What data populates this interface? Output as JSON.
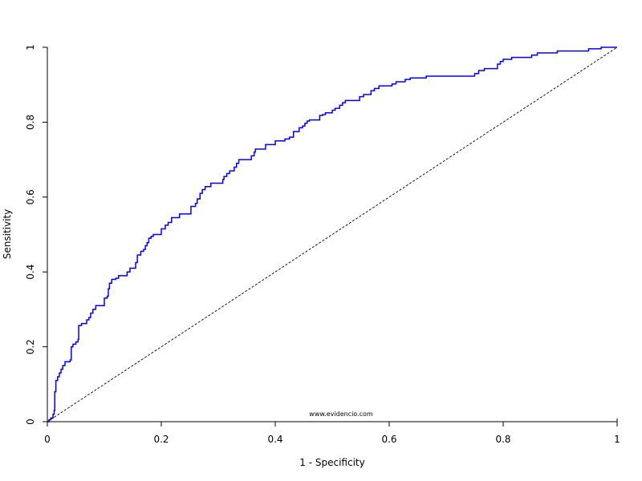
{
  "chart_data": {
    "type": "line",
    "title": "",
    "xlabel": "1 - Specificity",
    "ylabel": "Sensitivity",
    "xlim": [
      0,
      1
    ],
    "ylim": [
      0,
      1
    ],
    "xticks": [
      "0",
      "0.2",
      "0.4",
      "0.6",
      "0.8",
      "1"
    ],
    "yticks": [
      "0",
      "0.2",
      "0.4",
      "0.6",
      "0.8",
      "1"
    ],
    "grid": false,
    "legend": "none",
    "watermark": "www.evidencio.com",
    "series": [
      {
        "color": "#0000ff",
        "style": "step",
        "points": [
          [
            0.0,
            0.0
          ],
          [
            0.003,
            0.005
          ],
          [
            0.006,
            0.01
          ],
          [
            0.01,
            0.02
          ],
          [
            0.012,
            0.03
          ],
          [
            0.013,
            0.08
          ],
          [
            0.015,
            0.11
          ],
          [
            0.018,
            0.12
          ],
          [
            0.021,
            0.13
          ],
          [
            0.024,
            0.14
          ],
          [
            0.027,
            0.15
          ],
          [
            0.031,
            0.16
          ],
          [
            0.04,
            0.165
          ],
          [
            0.042,
            0.2
          ],
          [
            0.045,
            0.207
          ],
          [
            0.05,
            0.213
          ],
          [
            0.054,
            0.22
          ],
          [
            0.055,
            0.257
          ],
          [
            0.06,
            0.262
          ],
          [
            0.066,
            0.262
          ],
          [
            0.069,
            0.272
          ],
          [
            0.073,
            0.278
          ],
          [
            0.076,
            0.29
          ],
          [
            0.08,
            0.3
          ],
          [
            0.085,
            0.31
          ],
          [
            0.095,
            0.31
          ],
          [
            0.1,
            0.33
          ],
          [
            0.105,
            0.335
          ],
          [
            0.107,
            0.355
          ],
          [
            0.109,
            0.37
          ],
          [
            0.113,
            0.38
          ],
          [
            0.12,
            0.383
          ],
          [
            0.125,
            0.39
          ],
          [
            0.135,
            0.39
          ],
          [
            0.14,
            0.4
          ],
          [
            0.145,
            0.41
          ],
          [
            0.152,
            0.41
          ],
          [
            0.155,
            0.425
          ],
          [
            0.158,
            0.445
          ],
          [
            0.164,
            0.455
          ],
          [
            0.169,
            0.46
          ],
          [
            0.172,
            0.47
          ],
          [
            0.175,
            0.478
          ],
          [
            0.178,
            0.49
          ],
          [
            0.182,
            0.495
          ],
          [
            0.186,
            0.5
          ],
          [
            0.197,
            0.5
          ],
          [
            0.2,
            0.515
          ],
          [
            0.207,
            0.525
          ],
          [
            0.212,
            0.532
          ],
          [
            0.218,
            0.545
          ],
          [
            0.232,
            0.555
          ],
          [
            0.252,
            0.575
          ],
          [
            0.26,
            0.583
          ],
          [
            0.263,
            0.595
          ],
          [
            0.268,
            0.61
          ],
          [
            0.272,
            0.62
          ],
          [
            0.277,
            0.628
          ],
          [
            0.282,
            0.628
          ],
          [
            0.287,
            0.637
          ],
          [
            0.308,
            0.647
          ],
          [
            0.31,
            0.655
          ],
          [
            0.315,
            0.663
          ],
          [
            0.32,
            0.67
          ],
          [
            0.328,
            0.68
          ],
          [
            0.332,
            0.69
          ],
          [
            0.336,
            0.7
          ],
          [
            0.358,
            0.71
          ],
          [
            0.363,
            0.72
          ],
          [
            0.365,
            0.728
          ],
          [
            0.383,
            0.74
          ],
          [
            0.4,
            0.75
          ],
          [
            0.417,
            0.755
          ],
          [
            0.425,
            0.76
          ],
          [
            0.432,
            0.775
          ],
          [
            0.442,
            0.785
          ],
          [
            0.448,
            0.79
          ],
          [
            0.452,
            0.797
          ],
          [
            0.456,
            0.803
          ],
          [
            0.46,
            0.806
          ],
          [
            0.478,
            0.818
          ],
          [
            0.483,
            0.82
          ],
          [
            0.488,
            0.825
          ],
          [
            0.5,
            0.832
          ],
          [
            0.505,
            0.837
          ],
          [
            0.513,
            0.845
          ],
          [
            0.518,
            0.852
          ],
          [
            0.523,
            0.858
          ],
          [
            0.548,
            0.868
          ],
          [
            0.555,
            0.874
          ],
          [
            0.568,
            0.884
          ],
          [
            0.574,
            0.89
          ],
          [
            0.582,
            0.897
          ],
          [
            0.605,
            0.902
          ],
          [
            0.612,
            0.908
          ],
          [
            0.628,
            0.914
          ],
          [
            0.637,
            0.918
          ],
          [
            0.665,
            0.923
          ],
          [
            0.75,
            0.93
          ],
          [
            0.757,
            0.938
          ],
          [
            0.767,
            0.943
          ],
          [
            0.79,
            0.955
          ],
          [
            0.795,
            0.962
          ],
          [
            0.8,
            0.968
          ],
          [
            0.815,
            0.973
          ],
          [
            0.85,
            0.979
          ],
          [
            0.86,
            0.985
          ],
          [
            0.895,
            0.99
          ],
          [
            0.95,
            0.996
          ],
          [
            0.972,
            1.0
          ],
          [
            1.0,
            1.0
          ]
        ]
      },
      {
        "color": "#000000",
        "style": "dashed",
        "points": [
          [
            0,
            0
          ],
          [
            1,
            1
          ]
        ]
      }
    ]
  }
}
